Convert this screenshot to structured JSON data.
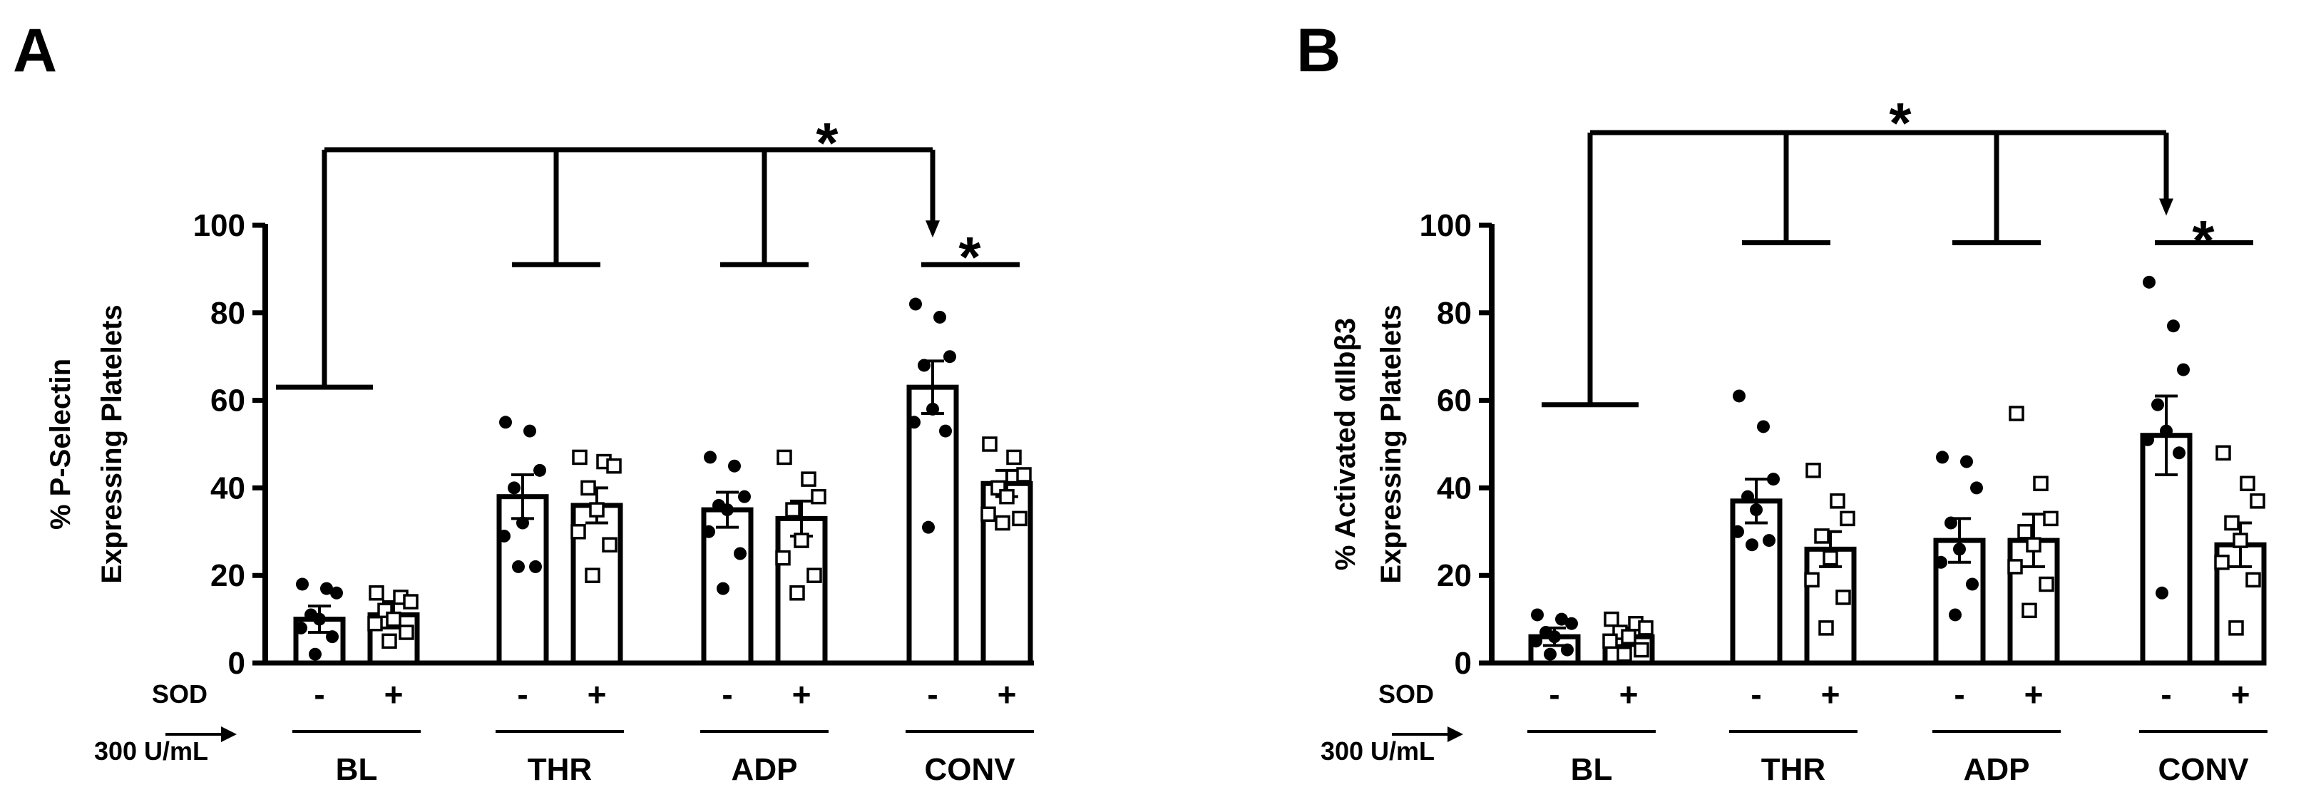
{
  "chart_data": [
    {
      "type": "bar",
      "panel": "A",
      "ylabel": [
        "% P-Selectin",
        "Expressing Platelets"
      ],
      "ylim": [
        0,
        100
      ],
      "yticks": [
        0,
        20,
        40,
        60,
        80,
        100
      ],
      "groups": [
        "BL",
        "THR",
        "ADP",
        "CONV"
      ],
      "treatment_label": [
        "SOD",
        "300 U/mL"
      ],
      "signs": [
        "-",
        "+"
      ],
      "series": [
        {
          "sod": "-",
          "marker": "filled-circle",
          "values": [
            10,
            38,
            35,
            63
          ],
          "errors": [
            3,
            5,
            4,
            6
          ]
        },
        {
          "sod": "+",
          "marker": "open-square",
          "values": [
            11,
            36,
            33,
            41
          ],
          "errors": [
            3,
            4,
            4,
            3
          ]
        }
      ],
      "points": {
        "BL": [
          [
            18,
            17,
            16,
            11,
            10,
            8,
            6,
            2
          ],
          [
            16,
            15,
            14,
            12,
            10,
            9,
            7,
            5
          ]
        ],
        "THR": [
          [
            55,
            53,
            44,
            40,
            32,
            29,
            22,
            22
          ],
          [
            47,
            46,
            45,
            40,
            35,
            30,
            27,
            20
          ]
        ],
        "ADP": [
          [
            47,
            45,
            38,
            36,
            35,
            30,
            25,
            17
          ],
          [
            47,
            42,
            38,
            35,
            28,
            24,
            20,
            16
          ]
        ],
        "CONV": [
          [
            82,
            79,
            70,
            68,
            58,
            55,
            53,
            31
          ],
          [
            50,
            47,
            43,
            40,
            38,
            34,
            33,
            32
          ]
        ]
      },
      "significance": [
        "*",
        "*"
      ]
    },
    {
      "type": "bar",
      "panel": "B",
      "ylabel": [
        "% Activated αIIbβ3",
        "Expressing Platelets"
      ],
      "ylim": [
        0,
        100
      ],
      "yticks": [
        0,
        20,
        40,
        60,
        80,
        100
      ],
      "groups": [
        "BL",
        "THR",
        "ADP",
        "CONV"
      ],
      "treatment_label": [
        "SOD",
        "300 U/mL"
      ],
      "signs": [
        "-",
        "+"
      ],
      "series": [
        {
          "sod": "-",
          "marker": "filled-circle",
          "values": [
            6,
            37,
            28,
            52
          ],
          "errors": [
            2,
            5,
            5,
            9
          ]
        },
        {
          "sod": "+",
          "marker": "open-square",
          "values": [
            6,
            26,
            28,
            27
          ],
          "errors": [
            2,
            4,
            6,
            5
          ]
        }
      ],
      "points": {
        "BL": [
          [
            11,
            10,
            9,
            7,
            6,
            5,
            3,
            2
          ],
          [
            10,
            9,
            8,
            7,
            6,
            5,
            3,
            2
          ]
        ],
        "THR": [
          [
            61,
            54,
            42,
            38,
            35,
            30,
            28,
            27
          ],
          [
            44,
            37,
            33,
            29,
            24,
            19,
            15,
            8
          ]
        ],
        "ADP": [
          [
            47,
            46,
            40,
            32,
            26,
            23,
            18,
            11
          ],
          [
            57,
            41,
            33,
            30,
            27,
            22,
            18,
            12
          ]
        ],
        "CONV": [
          [
            87,
            77,
            67,
            59,
            53,
            51,
            48,
            16
          ],
          [
            48,
            41,
            37,
            32,
            28,
            23,
            19,
            8
          ]
        ]
      },
      "significance": [
        "*",
        "*"
      ]
    }
  ]
}
